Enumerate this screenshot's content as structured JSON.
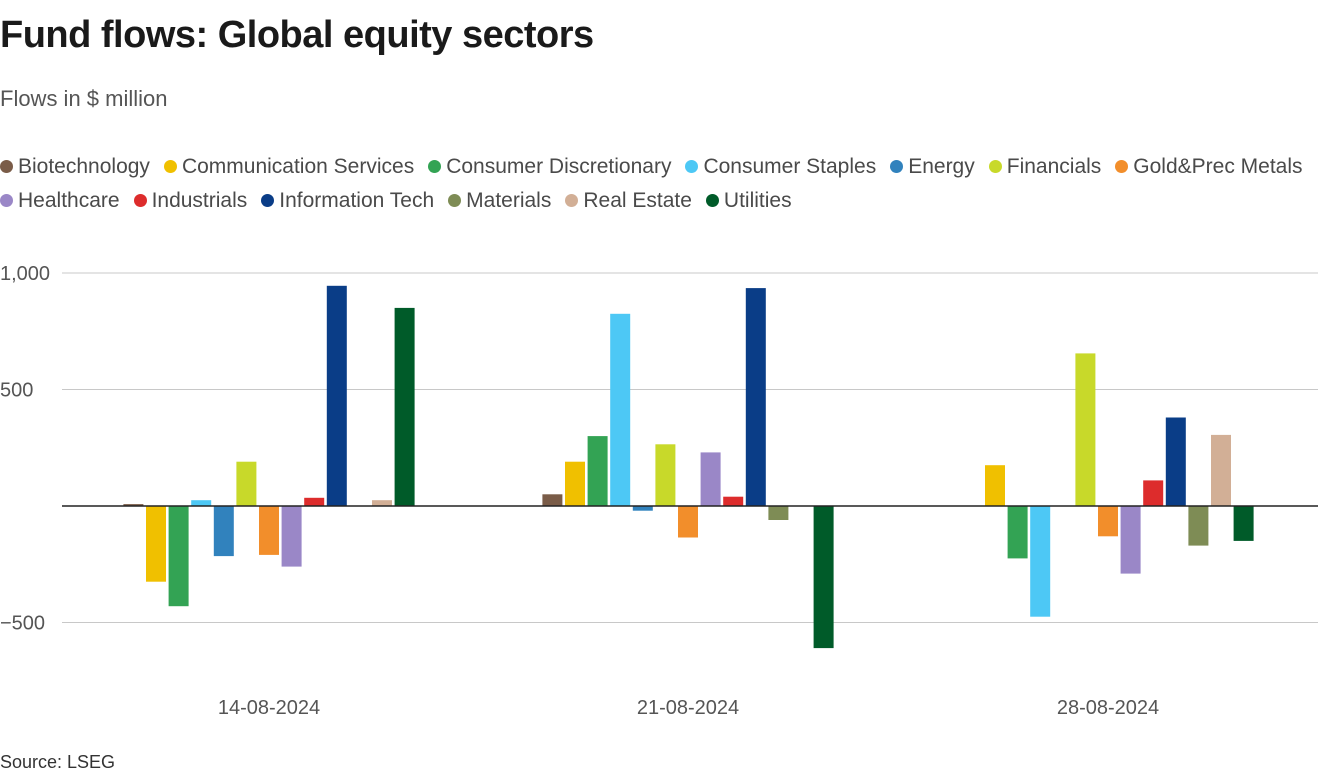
{
  "header": {
    "title": "Fund flows: Global equity sectors",
    "subtitle": "Flows in $ million"
  },
  "footer": {
    "source": "Source: LSEG"
  },
  "chart_data": {
    "type": "bar",
    "title": "Fund flows: Global equity sectors",
    "subtitle": "Flows in $ million",
    "categories": [
      "14-08-2024",
      "21-08-2024",
      "28-08-2024"
    ],
    "ylim": [
      -650,
      1000
    ],
    "yticks": [
      1000,
      500,
      -500
    ],
    "ytick_labels": [
      "1,000",
      "500",
      "−500"
    ],
    "grid": true,
    "legend_position": "top",
    "series": [
      {
        "name": "Biotechnology",
        "color": "#7a5c48",
        "values": [
          8,
          50,
          0
        ]
      },
      {
        "name": "Communication Services",
        "color": "#f0c000",
        "values": [
          -325,
          190,
          175
        ]
      },
      {
        "name": "Consumer Discretionary",
        "color": "#33a354",
        "values": [
          -430,
          300,
          -225
        ]
      },
      {
        "name": "Consumer Staples",
        "color": "#4dc8f5",
        "values": [
          25,
          825,
          -475
        ]
      },
      {
        "name": "Energy",
        "color": "#3182bd",
        "values": [
          -215,
          -20,
          0
        ]
      },
      {
        "name": "Financials",
        "color": "#c8d92a",
        "values": [
          190,
          265,
          655
        ]
      },
      {
        "name": "Gold&Prec Metals",
        "color": "#f28e2b",
        "values": [
          -210,
          -135,
          -130
        ]
      },
      {
        "name": "Healthcare",
        "color": "#9a87c7",
        "values": [
          -260,
          230,
          -290
        ]
      },
      {
        "name": "Industrials",
        "color": "#dd2c2c",
        "values": [
          35,
          40,
          110
        ]
      },
      {
        "name": "Information Tech",
        "color": "#0a3d87",
        "values": [
          945,
          935,
          380
        ]
      },
      {
        "name": "Materials",
        "color": "#7e8c55",
        "values": [
          0,
          -60,
          -170
        ]
      },
      {
        "name": "Real Estate",
        "color": "#d2af96",
        "values": [
          25,
          0,
          305
        ]
      },
      {
        "name": "Utilities",
        "color": "#005b29",
        "values": [
          850,
          -610,
          -150
        ]
      }
    ]
  }
}
